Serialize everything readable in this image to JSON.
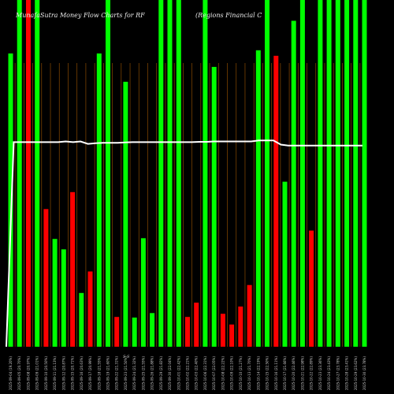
{
  "chart_data": {
    "type": "bar",
    "title": "MunafaSutra  Money Flow  Charts for RF",
    "subtitle": "(Regions Financial C",
    "xlabel": "",
    "ylabel": "",
    "ylim": [
      0,
      100
    ],
    "grid": "vertical",
    "colors": {
      "background": "#000000",
      "up": "#00ff00",
      "down": "#ff0000",
      "grid": "#8a4b00",
      "line": "#ffffff"
    },
    "mid_annotation": "S S",
    "categories": [
      "2025-09-04",
      "2025-09-05",
      "2025-09-08",
      "2025-09-09",
      "2025-09-10",
      "2025-09-11",
      "2025-09-12",
      "2025-09-15",
      "2025-09-16",
      "2025-09-17",
      "2025-09-18",
      "2025-09-19",
      "2025-09-22",
      "2025-09-23",
      "2025-09-24",
      "2025-09-25",
      "2025-09-26",
      "2025-09-29",
      "2025-09-30",
      "2025-10-01",
      "2025-10-02",
      "2025-10-03",
      "2025-10-06",
      "2025-10-07",
      "2025-10-08",
      "2025-10-09",
      "2025-10-10",
      "2025-10-13",
      "2025-10-14",
      "2025-10-15",
      "2025-10-16",
      "2025-10-17",
      "2025-10-20",
      "2025-10-21",
      "2025-10-22",
      "2025-10-23",
      "2025-10-24",
      "2025-10-27",
      "2025-10-28",
      "2025-10-29",
      "2025-10-30"
    ],
    "series": [
      {
        "values": [
          84.6,
          100,
          100,
          100,
          39.7,
          31.1,
          28.1,
          44.6,
          15.5,
          21.7,
          84.6,
          100,
          8.6,
          76.4,
          8.4,
          31.3,
          9.7,
          100,
          100,
          100,
          8.6,
          12.7,
          100,
          80.7,
          9.5,
          6.4,
          11.6,
          17.8,
          85.5,
          100,
          83.9,
          47.6,
          94.0,
          100,
          33.5,
          100,
          100,
          100,
          100,
          100,
          100
        ],
        "directions": [
          "up",
          "up",
          "down",
          "up",
          "down",
          "up",
          "up",
          "down",
          "up",
          "down",
          "up",
          "up",
          "down",
          "up",
          "up",
          "up",
          "up",
          "up",
          "up",
          "up",
          "down",
          "down",
          "up",
          "up",
          "down",
          "down",
          "down",
          "down",
          "up",
          "up",
          "down",
          "up",
          "up",
          "up",
          "down",
          "up",
          "up",
          "up",
          "up",
          "up",
          "up"
        ]
      }
    ],
    "line_series": {
      "values": [
        0,
        59.0,
        59.0,
        59.0,
        59.0,
        59.0,
        59.0,
        59.0,
        59.2,
        59.0,
        59.2,
        58.5,
        58.7,
        58.8,
        58.8,
        58.8,
        58.9,
        59.0,
        59.0,
        59.0,
        59.0,
        59.0,
        59.0,
        59.0,
        59.0,
        59.0,
        59.1,
        59.1,
        59.2,
        59.2,
        59.2,
        59.2,
        59.2,
        59.2,
        59.5,
        59.5,
        59.5,
        58.3,
        58.0,
        58.0,
        58.0,
        58.0,
        58.0,
        58.0,
        58.0,
        58.0,
        58.0,
        58.0,
        58.0
      ]
    },
    "tick_labels": [
      "2025-09-04 (19.20%)",
      "2025-09-05 (20.70%)",
      "2025-09-08 (20.97%)",
      "2025-09-09 (21.01%)",
      "2025-09-10 (20.50%)",
      "2025-09-11 (21.13%)",
      "2025-09-12 (20.87%)",
      "2025-09-15 (20.71%)",
      "2025-09-16 (20.63%)",
      "2025-09-17 (20.99%)",
      "2025-09-18 (21.55%)",
      "2025-09-19 (21.60%)",
      "2025-09-22 (21.31%)",
      "2025-09-23 (21.50%)",
      "2025-09-24 (21.32%)",
      "2025-09-25 (21.55%)",
      "2025-09-26 (21.88%)",
      "2025-09-29 (21.82%)",
      "2025-09-30 (22.04%)",
      "2025-10-01 (22.42%)",
      "2025-10-02 (22.21%)",
      "2025-10-03 (22.40%)",
      "2025-10-06 (22.31%)",
      "2025-10-07 (22.05%)",
      "2025-10-08 (22.22%)",
      "2025-10-09 (22.10%)",
      "2025-10-10 (21.27%)",
      "2025-10-13 (21.70%)",
      "2025-10-14 (22.19%)",
      "2025-10-15 (22.50%)",
      "2025-10-16 (21.11%)",
      "2025-10-17 (21.66%)",
      "2025-10-20 (22.46%)",
      "2025-10-21 (22.98%)",
      "2025-10-22 (22.89%)",
      "2025-10-23 (23.36%)",
      "2025-10-24 (23.43%)",
      "2025-10-27 (23.78%)",
      "2025-10-28 (23.41%)",
      "2025-10-29 (23.62%)",
      "2025-10-30 (23.78%)"
    ]
  }
}
